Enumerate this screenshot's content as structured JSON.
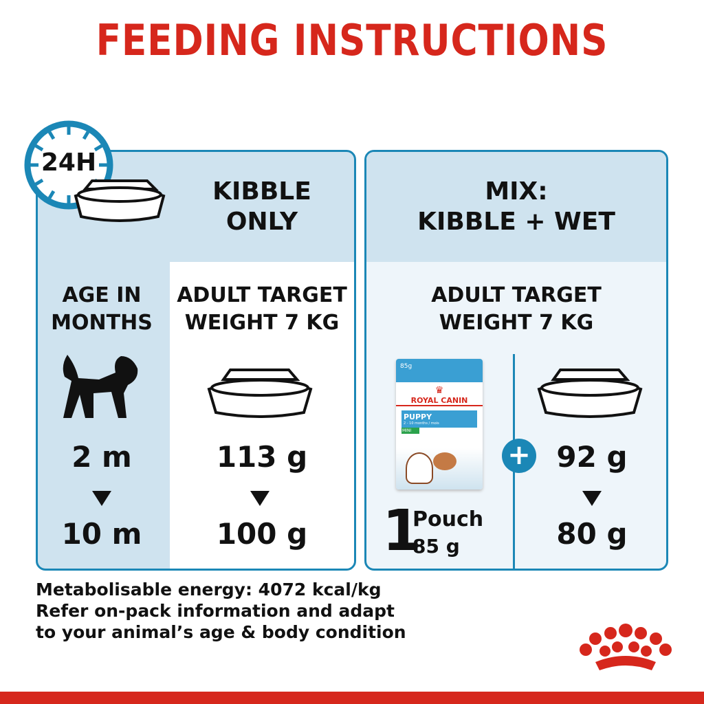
{
  "title": "FEEDING INSTRUCTIONS",
  "clock": {
    "label": "24H"
  },
  "kibble_only": {
    "title_line1": "KIBBLE",
    "title_line2": "ONLY",
    "target_line1": "ADULT TARGET",
    "target_line2": "WEIGHT 7 KG",
    "start": "113 g",
    "end": "100 g"
  },
  "age": {
    "label_line1": "AGE IN",
    "label_line2": "MONTHS",
    "start": "2 m",
    "end": "10 m"
  },
  "mix": {
    "title_line1": "MIX:",
    "title_line2": "KIBBLE + WET",
    "target_line1": "ADULT TARGET",
    "target_line2": "WEIGHT 7 KG",
    "pouch_count": "1",
    "pouch_label": "Pouch",
    "pouch_weight": "85 g",
    "kibble_start": "92 g",
    "kibble_end": "80 g",
    "plus": "+"
  },
  "pouch": {
    "weight": "85g",
    "brand": "ROYAL CANIN",
    "product": "PUPPY",
    "range": "2 - 10 months / mois",
    "size": "MINI"
  },
  "footer": {
    "line1": "Metabolisable energy: 4072 kcal/kg",
    "line2": "Refer on-pack information and adapt",
    "line3": "to your animal’s age & body condition"
  },
  "colors": {
    "red": "#d6271c",
    "blue": "#1b87b6",
    "light_blue": "#cfe3ef"
  }
}
